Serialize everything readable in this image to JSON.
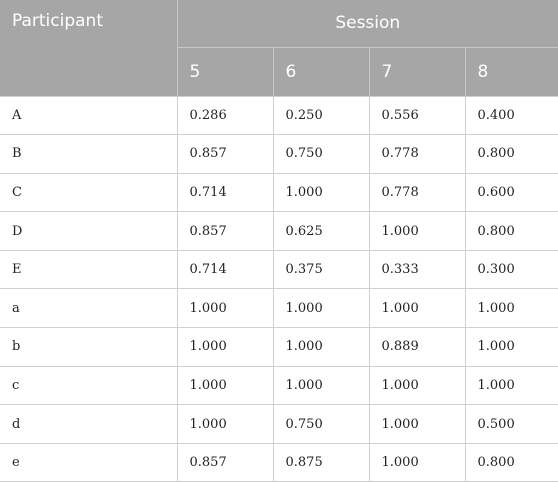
{
  "table": {
    "participant_header": "Participant",
    "session_header": "Session",
    "session_columns": [
      "5",
      "6",
      "7",
      "8"
    ],
    "rows": [
      {
        "participant": "A",
        "values": [
          "0.286",
          "0.250",
          "0.556",
          "0.400"
        ]
      },
      {
        "participant": "B",
        "values": [
          "0.857",
          "0.750",
          "0.778",
          "0.800"
        ]
      },
      {
        "participant": "C",
        "values": [
          "0.714",
          "1.000",
          "0.778",
          "0.600"
        ]
      },
      {
        "participant": "D",
        "values": [
          "0.857",
          "0.625",
          "1.000",
          "0.800"
        ]
      },
      {
        "participant": "E",
        "values": [
          "0.714",
          "0.375",
          "0.333",
          "0.300"
        ]
      },
      {
        "participant": "a",
        "values": [
          "1.000",
          "1.000",
          "1.000",
          "1.000"
        ]
      },
      {
        "participant": "b",
        "values": [
          "1.000",
          "1.000",
          "0.889",
          "1.000"
        ]
      },
      {
        "participant": "c",
        "values": [
          "1.000",
          "1.000",
          "1.000",
          "1.000"
        ]
      },
      {
        "participant": "d",
        "values": [
          "1.000",
          "0.750",
          "1.000",
          "0.500"
        ]
      },
      {
        "participant": "e",
        "values": [
          "0.857",
          "0.875",
          "1.000",
          "0.800"
        ]
      }
    ]
  },
  "colors": {
    "header_background": "#a6a6a6",
    "header_text": "#ffffff",
    "grid_line": "#cfcfcf"
  }
}
